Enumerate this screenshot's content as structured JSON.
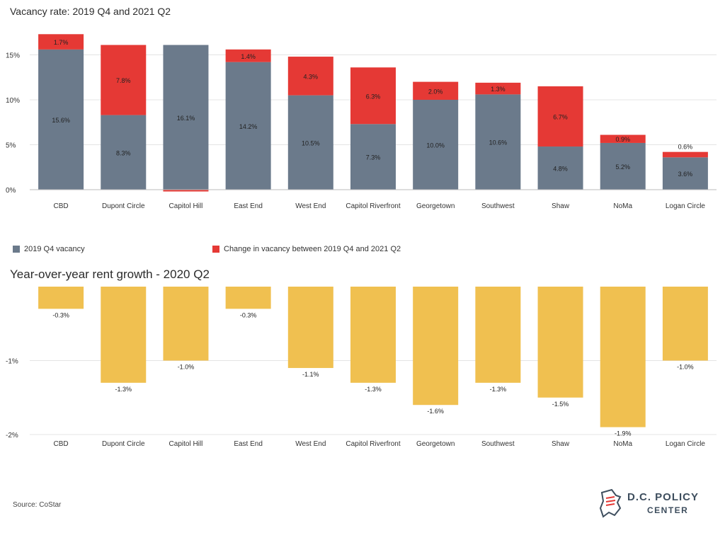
{
  "chart_data": [
    {
      "type": "bar",
      "stacked": true,
      "title": "Vacancy rate: 2019 Q4 and 2021 Q2",
      "categories": [
        "CBD",
        "Dupont Circle",
        "Capitol Hill",
        "East End",
        "West End",
        "Capitol Riverfront",
        "Georgetown",
        "Southwest",
        "Shaw",
        "NoMa",
        "Logan Circle"
      ],
      "series": [
        {
          "name": "2019 Q4 vacancy",
          "color": "#6b7a8b",
          "values": [
            15.6,
            8.3,
            16.1,
            14.2,
            10.5,
            7.3,
            10.0,
            10.6,
            4.8,
            5.2,
            3.6
          ],
          "labels": [
            "15.6%",
            "8.3%",
            "16.1%",
            "14.2%",
            "10.5%",
            "7.3%",
            "10.0%",
            "10.6%",
            "4.8%",
            "5.2%",
            "3.6%"
          ]
        },
        {
          "name": "Change in vacancy between 2019 Q4 and 2021 Q2",
          "color": "#e53935",
          "values": [
            1.7,
            7.8,
            -0.2,
            1.4,
            4.3,
            6.3,
            2.0,
            1.3,
            6.7,
            0.9,
            0.6
          ],
          "labels": [
            "1.7%",
            "7.8%",
            "",
            "1.4%",
            "4.3%",
            "6.3%",
            "2.0%",
            "1.3%",
            "6.7%",
            "0.9%",
            "0.6%"
          ]
        }
      ],
      "yticks": [
        0,
        5,
        10,
        15
      ],
      "ytick_labels": [
        "0%",
        "5%",
        "10%",
        "15%"
      ],
      "ylim": [
        0,
        17.5
      ],
      "legend_position": "bottom-left"
    },
    {
      "type": "bar",
      "title": "Year-over-year rent growth - 2020 Q2",
      "categories": [
        "CBD",
        "Dupont Circle",
        "Capitol Hill",
        "East End",
        "West End",
        "Capitol Riverfront",
        "Georgetown",
        "Southwest",
        "Shaw",
        "NoMa",
        "Logan Circle"
      ],
      "series": [
        {
          "color": "#f0c050",
          "values": [
            -0.3,
            -1.3,
            -1.0,
            -0.3,
            -1.1,
            -1.3,
            -1.6,
            -1.3,
            -1.5,
            -1.9,
            -1.0
          ],
          "labels": [
            "-0.3%",
            "-1.3%",
            "-1.0%",
            "-0.3%",
            "-1.1%",
            "-1.3%",
            "-1.6%",
            "-1.3%",
            "-1.5%",
            "-1.9%",
            "-1.0%"
          ]
        }
      ],
      "yticks": [
        -1,
        -2
      ],
      "ytick_labels": [
        "-1%",
        "-2%"
      ],
      "ylim": [
        -2,
        0
      ]
    }
  ],
  "legend": {
    "item1": "2019 Q4 vacancy",
    "item2": "Change in vacancy between 2019 Q4 and 2021 Q2"
  },
  "source": "Source: CoStar",
  "logo": {
    "line1": "D.C. POLICY",
    "line2": "CENTER"
  },
  "colors": {
    "gray": "#6b7a8b",
    "red": "#e53935",
    "yellow": "#f0c050"
  }
}
